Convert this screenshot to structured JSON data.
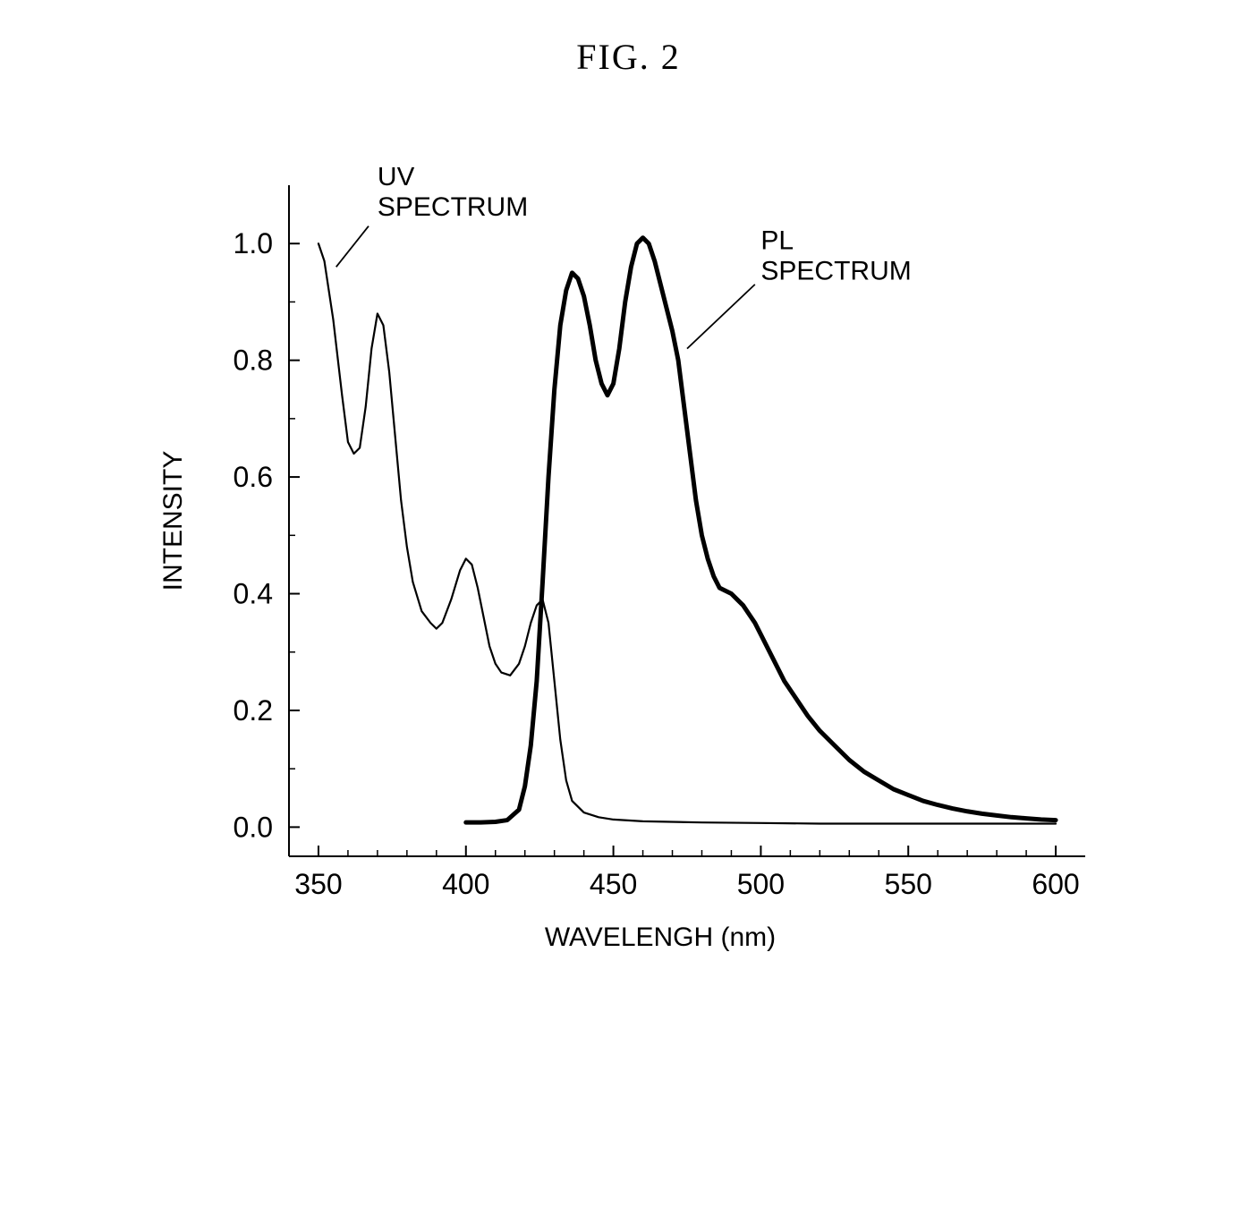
{
  "figure": {
    "title": "FIG. 2",
    "title_fontsize": 40,
    "title_font": "Times New Roman, serif"
  },
  "chart": {
    "type": "line",
    "background_color": "#ffffff",
    "axis_color": "#000000",
    "xlabel": "WAVELENGH (nm)",
    "ylabel": "INTENSITY",
    "label_fontsize": 30,
    "tick_fontsize": 32,
    "xlim": [
      340,
      610
    ],
    "ylim": [
      -0.05,
      1.1
    ],
    "xticks": [
      350,
      400,
      450,
      500,
      550,
      600
    ],
    "yticks": [
      0.0,
      0.2,
      0.4,
      0.6,
      0.8,
      1.0
    ],
    "tick_length_major": 12,
    "tick_length_minor": 7,
    "x_minor_step": 10,
    "y_minor_step": 0.1,
    "series": [
      {
        "name": "UV SPECTRUM",
        "label": "UV\nSPECTRUM",
        "color": "#000000",
        "line_width": 2.2,
        "label_pos": {
          "x": 370,
          "y": 1.1,
          "anchor": "start"
        },
        "leader": {
          "x1": 367,
          "y1": 1.03,
          "x2": 356,
          "y2": 0.96
        },
        "data": [
          [
            350,
            1.0
          ],
          [
            352,
            0.97
          ],
          [
            355,
            0.87
          ],
          [
            358,
            0.74
          ],
          [
            360,
            0.66
          ],
          [
            362,
            0.64
          ],
          [
            364,
            0.65
          ],
          [
            366,
            0.72
          ],
          [
            368,
            0.82
          ],
          [
            370,
            0.88
          ],
          [
            372,
            0.86
          ],
          [
            374,
            0.78
          ],
          [
            376,
            0.67
          ],
          [
            378,
            0.56
          ],
          [
            380,
            0.48
          ],
          [
            382,
            0.42
          ],
          [
            385,
            0.37
          ],
          [
            388,
            0.35
          ],
          [
            390,
            0.34
          ],
          [
            392,
            0.35
          ],
          [
            395,
            0.39
          ],
          [
            398,
            0.44
          ],
          [
            400,
            0.46
          ],
          [
            402,
            0.45
          ],
          [
            404,
            0.41
          ],
          [
            406,
            0.36
          ],
          [
            408,
            0.31
          ],
          [
            410,
            0.28
          ],
          [
            412,
            0.265
          ],
          [
            415,
            0.26
          ],
          [
            418,
            0.28
          ],
          [
            420,
            0.31
          ],
          [
            422,
            0.35
          ],
          [
            424,
            0.38
          ],
          [
            426,
            0.39
          ],
          [
            428,
            0.35
          ],
          [
            430,
            0.25
          ],
          [
            432,
            0.15
          ],
          [
            434,
            0.08
          ],
          [
            436,
            0.045
          ],
          [
            440,
            0.025
          ],
          [
            445,
            0.017
          ],
          [
            450,
            0.013
          ],
          [
            460,
            0.01
          ],
          [
            480,
            0.008
          ],
          [
            500,
            0.007
          ],
          [
            520,
            0.006
          ],
          [
            550,
            0.006
          ],
          [
            580,
            0.006
          ],
          [
            600,
            0.006
          ]
        ]
      },
      {
        "name": "PL SPECTRUM",
        "label": "PL\nSPECTRUM",
        "color": "#000000",
        "line_width": 5,
        "label_pos": {
          "x": 500,
          "y": 0.99,
          "anchor": "start"
        },
        "leader": {
          "x1": 498,
          "y1": 0.93,
          "x2": 475,
          "y2": 0.82
        },
        "data": [
          [
            400,
            0.008
          ],
          [
            405,
            0.008
          ],
          [
            410,
            0.009
          ],
          [
            414,
            0.012
          ],
          [
            418,
            0.03
          ],
          [
            420,
            0.07
          ],
          [
            422,
            0.14
          ],
          [
            424,
            0.25
          ],
          [
            426,
            0.42
          ],
          [
            428,
            0.6
          ],
          [
            430,
            0.75
          ],
          [
            432,
            0.86
          ],
          [
            434,
            0.92
          ],
          [
            436,
            0.95
          ],
          [
            438,
            0.94
          ],
          [
            440,
            0.91
          ],
          [
            442,
            0.86
          ],
          [
            444,
            0.8
          ],
          [
            446,
            0.76
          ],
          [
            448,
            0.74
          ],
          [
            450,
            0.76
          ],
          [
            452,
            0.82
          ],
          [
            454,
            0.9
          ],
          [
            456,
            0.96
          ],
          [
            458,
            1.0
          ],
          [
            460,
            1.01
          ],
          [
            462,
            1.0
          ],
          [
            464,
            0.97
          ],
          [
            466,
            0.93
          ],
          [
            468,
            0.89
          ],
          [
            470,
            0.85
          ],
          [
            472,
            0.8
          ],
          [
            474,
            0.72
          ],
          [
            476,
            0.64
          ],
          [
            478,
            0.56
          ],
          [
            480,
            0.5
          ],
          [
            482,
            0.46
          ],
          [
            484,
            0.43
          ],
          [
            486,
            0.41
          ],
          [
            488,
            0.405
          ],
          [
            490,
            0.4
          ],
          [
            492,
            0.39
          ],
          [
            494,
            0.38
          ],
          [
            496,
            0.365
          ],
          [
            498,
            0.35
          ],
          [
            500,
            0.33
          ],
          [
            504,
            0.29
          ],
          [
            508,
            0.25
          ],
          [
            512,
            0.22
          ],
          [
            516,
            0.19
          ],
          [
            520,
            0.165
          ],
          [
            525,
            0.14
          ],
          [
            530,
            0.115
          ],
          [
            535,
            0.095
          ],
          [
            540,
            0.08
          ],
          [
            545,
            0.065
          ],
          [
            550,
            0.055
          ],
          [
            555,
            0.045
          ],
          [
            560,
            0.038
          ],
          [
            565,
            0.032
          ],
          [
            570,
            0.027
          ],
          [
            575,
            0.023
          ],
          [
            580,
            0.02
          ],
          [
            585,
            0.017
          ],
          [
            590,
            0.015
          ],
          [
            595,
            0.013
          ],
          [
            600,
            0.012
          ]
        ]
      }
    ]
  }
}
